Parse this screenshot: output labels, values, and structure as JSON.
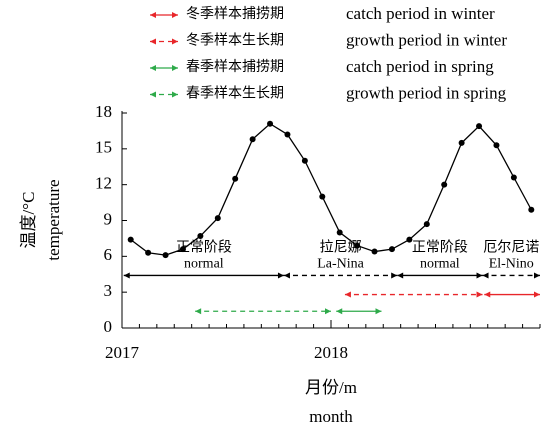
{
  "chart_data": {
    "type": "line",
    "y_label_cn": "温度/°C",
    "y_label_en": "temperature",
    "x_label_cn": "月份/m",
    "x_label_en": "month",
    "x": [
      0.5,
      1.5,
      2.5,
      3.5,
      4.5,
      5.5,
      6.5,
      7.5,
      8.5,
      9.5,
      10.5,
      11.5,
      12.5,
      13.5,
      14.5,
      15.5,
      16.5,
      17.5,
      18.5,
      19.5,
      20.5,
      21.5,
      22.5,
      23.5
    ],
    "series": [
      {
        "color": "#000000",
        "values": [
          7.4,
          6.3,
          6.1,
          6.6,
          7.7,
          9.2,
          12.5,
          15.8,
          17.1,
          16.2,
          14.0,
          11.0,
          8.0,
          6.9,
          6.4,
          6.6,
          7.4,
          8.7,
          12.0,
          15.5,
          16.9,
          15.3,
          12.6,
          9.9
        ]
      }
    ],
    "xlim": [
      0,
      24
    ],
    "xticks": [
      {
        "value": 0,
        "label": "2017"
      },
      {
        "value": 12,
        "label": "2018"
      }
    ],
    "x_minor_step": 1,
    "ylim": [
      0,
      18
    ],
    "yticks": [
      0,
      3,
      6,
      9,
      12,
      15,
      18
    ],
    "periods": [
      {
        "name_cn": "冬季样本捕捞期",
        "name_en": "catch period in winter",
        "color": "#e8262a",
        "dashed": false,
        "start": 20.8,
        "end": 24,
        "y": 2.8
      },
      {
        "name_cn": "冬季样本生长期",
        "name_en": "growth period in winter",
        "color": "#e8262a",
        "dashed": true,
        "start": 12.8,
        "end": 20.7,
        "y": 2.8
      },
      {
        "name_cn": "春季样本捕捞期",
        "name_en": "catch period in spring",
        "color": "#2eaa4a",
        "dashed": false,
        "start": 12.3,
        "end": 14.9,
        "y": 1.4
      },
      {
        "name_cn": "春季样本生长期",
        "name_en": "growth period in spring",
        "color": "#2eaa4a",
        "dashed": true,
        "start": 4.2,
        "end": 12.0,
        "y": 1.4
      }
    ],
    "phases": [
      {
        "label_cn": "正常阶段",
        "label_en": "normal",
        "dashed": false,
        "start": 0.1,
        "end": 9.3,
        "y": 4.4
      },
      {
        "label_cn": "拉尼娜",
        "label_en": "La-Nina",
        "dashed": true,
        "start": 9.3,
        "end": 15.8,
        "y": 4.4
      },
      {
        "label_cn": "正常阶段",
        "label_en": "normal",
        "dashed": false,
        "start": 15.8,
        "end": 20.7,
        "y": 4.4
      },
      {
        "label_cn": "厄尔尼诺",
        "label_en": "El-Nino",
        "dashed": true,
        "start": 20.7,
        "end": 24,
        "y": 4.4
      }
    ]
  }
}
